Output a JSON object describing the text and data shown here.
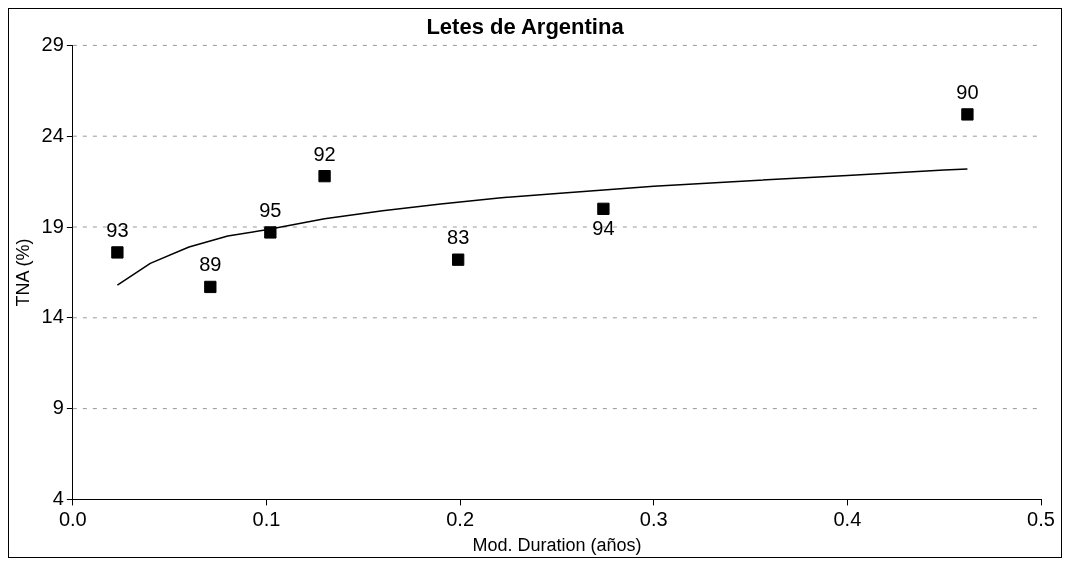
{
  "chart_data": {
    "type": "scatter",
    "title": "Letes de Argentina",
    "xlabel": "Mod. Duration (años)",
    "ylabel": "TNA (%)",
    "xlim": [
      0,
      0.5
    ],
    "xticks": [
      {
        "value": 0,
        "label": "0.0"
      },
      0.1,
      0.2,
      0.3,
      0.4,
      0.5
    ],
    "ylim": [
      4,
      29
    ],
    "yticks": [
      4,
      9,
      14,
      19,
      24,
      29
    ],
    "grid": "y",
    "legend": false,
    "annotations": [
      {
        "text": "93",
        "x": 0.023,
        "y": 17.6
      },
      {
        "text": "89",
        "x": 0.071,
        "y": 15.7
      },
      {
        "text": "95",
        "x": 0.102,
        "y": 18.7
      },
      {
        "text": "92",
        "x": 0.13,
        "y": 21.8
      },
      {
        "text": "83",
        "x": 0.199,
        "y": 17.2
      },
      {
        "text": "94",
        "x": 0.274,
        "y": 20.0
      },
      {
        "text": "90",
        "x": 0.462,
        "y": 25.2
      }
    ],
    "series": [
      {
        "color": "#000000",
        "marker": "square",
        "x": [
          0.023,
          0.071,
          0.102,
          0.13,
          0.199,
          0.274,
          0.462
        ],
        "values": [
          17.6,
          15.7,
          18.7,
          21.8,
          17.2,
          20.0,
          25.2
        ]
      },
      {
        "type": "line",
        "color": "#000000",
        "marker": "none",
        "line_style": "solid",
        "x": [
          0.023,
          0.04,
          0.06,
          0.08,
          0.1,
          0.13,
          0.16,
          0.19,
          0.22,
          0.25,
          0.3,
          0.35,
          0.4,
          0.45,
          0.462
        ],
        "values": [
          15.8,
          17.0,
          17.9,
          18.5,
          18.85,
          19.45,
          19.9,
          20.27,
          20.6,
          20.85,
          21.25,
          21.55,
          21.84,
          22.14,
          22.2
        ]
      }
    ]
  }
}
